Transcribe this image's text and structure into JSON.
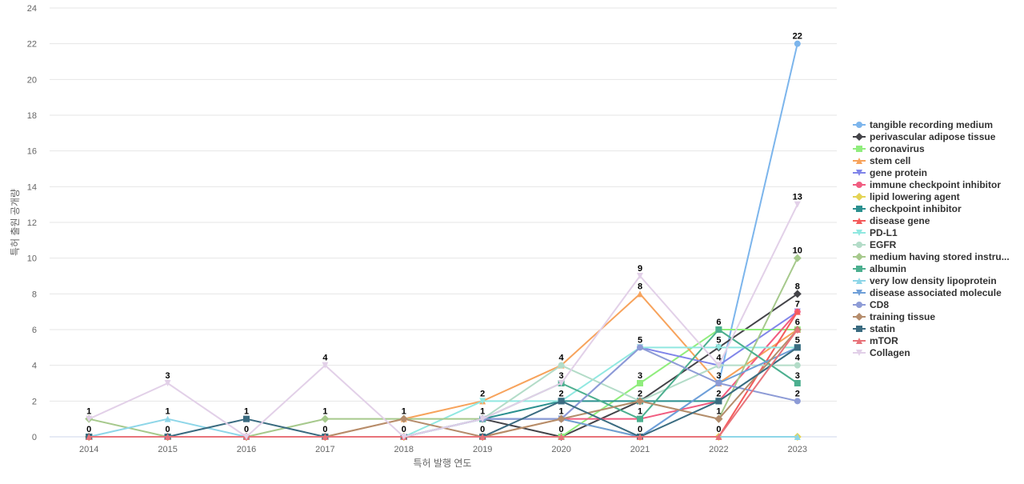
{
  "chart_data": {
    "type": "line",
    "title": "",
    "xlabel": "특허 발행 연도",
    "ylabel": "특허 출원 공개량",
    "x": [
      "2014",
      "2015",
      "2016",
      "2017",
      "2018",
      "2019",
      "2020",
      "2021",
      "2022",
      "2023"
    ],
    "ylim": [
      0,
      24
    ],
    "yticks": [
      0,
      2,
      4,
      6,
      8,
      10,
      12,
      14,
      16,
      18,
      20,
      22,
      24
    ],
    "grid": true,
    "legend_position": "right",
    "series": [
      {
        "name": "tangible recording medium",
        "display_name": "tangible recording medium",
        "color": "#7cb5ec",
        "marker": "circle",
        "values": [
          0,
          0,
          0,
          0,
          0,
          1,
          1,
          0,
          3,
          22
        ]
      },
      {
        "name": "perivascular adipose tissue",
        "display_name": "perivascular adipose tissue",
        "color": "#434348",
        "marker": "diamond",
        "values": [
          0,
          0,
          0,
          0,
          0,
          1,
          0,
          2,
          5,
          8
        ]
      },
      {
        "name": "coronavirus",
        "display_name": "coronavirus",
        "color": "#90ed7d",
        "marker": "square",
        "values": [
          0,
          0,
          0,
          0,
          0,
          0,
          0,
          3,
          6,
          6
        ]
      },
      {
        "name": "stem cell",
        "display_name": "stem cell",
        "color": "#f7a35c",
        "marker": "triangle",
        "values": [
          0,
          0,
          0,
          0,
          1,
          2,
          4,
          8,
          3,
          6
        ]
      },
      {
        "name": "gene protein",
        "display_name": "gene protein",
        "color": "#8085e9",
        "marker": "triangle-down",
        "values": [
          0,
          0,
          0,
          0,
          0,
          1,
          1,
          5,
          4,
          7
        ]
      },
      {
        "name": "immune checkpoint inhibitor",
        "display_name": "immune checkpoint inhibitor",
        "color": "#f15c80",
        "marker": "circle",
        "values": [
          0,
          0,
          0,
          0,
          0,
          0,
          1,
          1,
          2,
          7
        ]
      },
      {
        "name": "lipid lowering agent",
        "display_name": "lipid lowering agent",
        "color": "#e4d354",
        "marker": "diamond",
        "values": [
          0,
          0,
          0,
          0,
          0,
          0,
          1,
          0,
          0,
          0
        ]
      },
      {
        "name": "checkpoint inhibitor",
        "display_name": "checkpoint inhibitor",
        "color": "#2b908f",
        "marker": "square",
        "values": [
          0,
          0,
          0,
          0,
          0,
          1,
          2,
          2,
          2,
          5
        ]
      },
      {
        "name": "disease gene",
        "display_name": "disease gene",
        "color": "#f45b5b",
        "marker": "triangle",
        "values": [
          0,
          0,
          0,
          0,
          0,
          0,
          0,
          0,
          0,
          7
        ]
      },
      {
        "name": "PD-L1",
        "display_name": "PD-L1",
        "color": "#91e8e1",
        "marker": "triangle-down",
        "values": [
          0,
          0,
          0,
          0,
          0,
          2,
          2,
          5,
          5,
          5
        ]
      },
      {
        "name": "EGFR",
        "display_name": "EGFR",
        "color": "#b3dcc8",
        "marker": "circle",
        "values": [
          0,
          0,
          0,
          0,
          0,
          1,
          4,
          2,
          4,
          4
        ]
      },
      {
        "name": "medium having stored instructions",
        "display_name": "medium having stored instru...",
        "color": "#a6c98c",
        "marker": "diamond",
        "values": [
          1,
          0,
          0,
          1,
          1,
          1,
          1,
          2,
          1,
          10
        ]
      },
      {
        "name": "albumin",
        "display_name": "albumin",
        "color": "#4caf8f",
        "marker": "square",
        "values": [
          0,
          0,
          0,
          0,
          0,
          1,
          3,
          1,
          6,
          3
        ]
      },
      {
        "name": "very low density lipoprotein",
        "display_name": "very low density lipoprotein",
        "color": "#8ed6e8",
        "marker": "triangle",
        "values": [
          0,
          1,
          0,
          0,
          0,
          0,
          0,
          0,
          0,
          0
        ]
      },
      {
        "name": "disease associated molecule",
        "display_name": "disease associated molecule",
        "color": "#6f9fd8",
        "marker": "triangle-down",
        "values": [
          0,
          0,
          0,
          0,
          0,
          1,
          1,
          0,
          3,
          5
        ]
      },
      {
        "name": "CD8",
        "display_name": "CD8",
        "color": "#8d9bd6",
        "marker": "circle",
        "values": [
          0,
          0,
          0,
          0,
          0,
          1,
          1,
          5,
          3,
          2
        ]
      },
      {
        "name": "training tissue",
        "display_name": "training tissue",
        "color": "#b58c6c",
        "marker": "diamond",
        "values": [
          0,
          0,
          0,
          0,
          1,
          0,
          1,
          2,
          1,
          6
        ]
      },
      {
        "name": "statin",
        "display_name": "statin",
        "color": "#3a6b80",
        "marker": "square",
        "values": [
          0,
          0,
          1,
          0,
          0,
          0,
          2,
          0,
          2,
          5
        ]
      },
      {
        "name": "mTOR",
        "display_name": "mTOR",
        "color": "#e8737a",
        "marker": "triangle",
        "values": [
          0,
          0,
          0,
          0,
          0,
          0,
          0,
          0,
          0,
          6
        ]
      },
      {
        "name": "Collagen",
        "display_name": "Collagen",
        "color": "#e2d0e8",
        "marker": "triangle-down",
        "values": [
          1,
          3,
          0,
          4,
          0,
          1,
          3,
          9,
          4,
          13
        ]
      }
    ],
    "data_labels": [
      {
        "x": "2014",
        "text": "1",
        "value": 1
      },
      {
        "x": "2014",
        "text": "0",
        "value": 0
      },
      {
        "x": "2015",
        "text": "3",
        "value": 3
      },
      {
        "x": "2015",
        "text": "1",
        "value": 1
      },
      {
        "x": "2015",
        "text": "0",
        "value": 0
      },
      {
        "x": "2016",
        "text": "1",
        "value": 1
      },
      {
        "x": "2016",
        "text": "0",
        "value": 0
      },
      {
        "x": "2017",
        "text": "4",
        "value": 4
      },
      {
        "x": "2017",
        "text": "1",
        "value": 1
      },
      {
        "x": "2017",
        "text": "0",
        "value": 0
      },
      {
        "x": "2018",
        "text": "1",
        "value": 1
      },
      {
        "x": "2018",
        "text": "0",
        "value": 0
      },
      {
        "x": "2019",
        "text": "2",
        "value": 2
      },
      {
        "x": "2019",
        "text": "1",
        "value": 1
      },
      {
        "x": "2019",
        "text": "0",
        "value": 0
      },
      {
        "x": "2020",
        "text": "4",
        "value": 4
      },
      {
        "x": "2020",
        "text": "3",
        "value": 3
      },
      {
        "x": "2020",
        "text": "2",
        "value": 2
      },
      {
        "x": "2020",
        "text": "1",
        "value": 1
      },
      {
        "x": "2020",
        "text": "0",
        "value": 0
      },
      {
        "x": "2021",
        "text": "9",
        "value": 9
      },
      {
        "x": "2021",
        "text": "8",
        "value": 8
      },
      {
        "x": "2021",
        "text": "5",
        "value": 5
      },
      {
        "x": "2021",
        "text": "3",
        "value": 3
      },
      {
        "x": "2021",
        "text": "2",
        "value": 2
      },
      {
        "x": "2021",
        "text": "1",
        "value": 1
      },
      {
        "x": "2021",
        "text": "0",
        "value": 0
      },
      {
        "x": "2022",
        "text": "6",
        "value": 6
      },
      {
        "x": "2022",
        "text": "5",
        "value": 5
      },
      {
        "x": "2022",
        "text": "4",
        "value": 4
      },
      {
        "x": "2022",
        "text": "3",
        "value": 3
      },
      {
        "x": "2022",
        "text": "2",
        "value": 2
      },
      {
        "x": "2022",
        "text": "1",
        "value": 1
      },
      {
        "x": "2022",
        "text": "0",
        "value": 0
      },
      {
        "x": "2023",
        "text": "22",
        "value": 22
      },
      {
        "x": "2023",
        "text": "13",
        "value": 13
      },
      {
        "x": "2023",
        "text": "10",
        "value": 10
      },
      {
        "x": "2023",
        "text": "8",
        "value": 8
      },
      {
        "x": "2023",
        "text": "7",
        "value": 7
      },
      {
        "x": "2023",
        "text": "6",
        "value": 6
      },
      {
        "x": "2023",
        "text": "5",
        "value": 5
      },
      {
        "x": "2023",
        "text": "4",
        "value": 4
      },
      {
        "x": "2023",
        "text": "3",
        "value": 3
      },
      {
        "x": "2023",
        "text": "2",
        "value": 2
      }
    ]
  }
}
